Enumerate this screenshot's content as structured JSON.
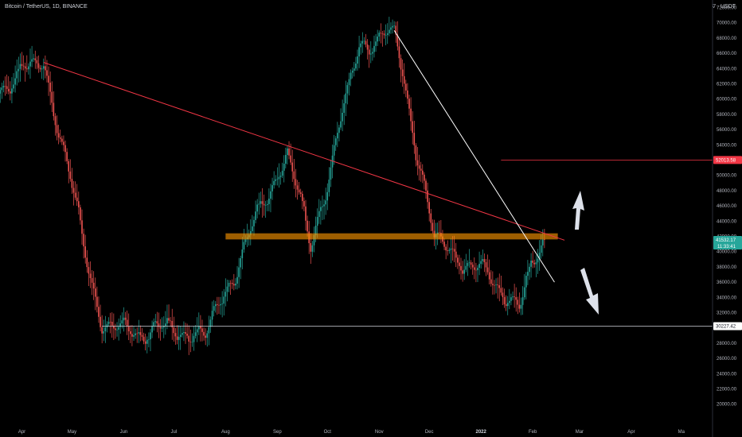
{
  "header": {
    "title": "Bitcoin / TetherUS, 1D, BINANCE",
    "currency": "USDT",
    "currency_caret": "∇"
  },
  "price_axis": {
    "labels": [
      "72000.00",
      "70000.00",
      "68000.00",
      "66000.00",
      "64000.00",
      "62000.00",
      "60000.00",
      "58000.00",
      "56000.00",
      "54000.00",
      "52000.00",
      "50000.00",
      "48000.00",
      "46000.00",
      "44000.00",
      "42000.00",
      "40000.00",
      "38000.00",
      "36000.00",
      "34000.00",
      "32000.00",
      "30000.00",
      "28000.00",
      "26000.00",
      "24000.00",
      "22000.00",
      "20000.00"
    ],
    "values": [
      72000,
      70000,
      68000,
      66000,
      64000,
      62000,
      60000,
      58000,
      56000,
      54000,
      52000,
      50000,
      48000,
      46000,
      44000,
      42000,
      40000,
      38000,
      36000,
      34000,
      32000,
      30000,
      28000,
      26000,
      24000,
      22000,
      20000
    ]
  },
  "time_axis": {
    "labels": [
      "Apr",
      "May",
      "Jun",
      "Jul",
      "Aug",
      "Sep",
      "Oct",
      "Nov",
      "Dec",
      "2022",
      "Feb",
      "Mar",
      "Apr",
      "Ma"
    ],
    "bold": [
      false,
      false,
      false,
      false,
      false,
      false,
      false,
      false,
      false,
      true,
      false,
      false,
      false,
      false
    ]
  },
  "price_tags": {
    "upper_line": {
      "text": "52013.58",
      "value": 52013.58,
      "color": "#f23645"
    },
    "current_price": {
      "text": "41532.17",
      "value": 41532.17,
      "countdown": "11:33:41",
      "color": "#26a69a"
    },
    "lower_line": {
      "text": "30227.42",
      "value": 30227.42,
      "color": "#ffffff"
    }
  },
  "colors": {
    "up": "#26a69a",
    "down": "#ef5350",
    "background": "#000000",
    "trendline_red": "#f23645",
    "trendline_white": "#ffffff",
    "zone": "#ff9800"
  },
  "chart_data": {
    "type": "candlestick",
    "symbol": "Bitcoin / TetherUS",
    "interval": "1D",
    "exchange": "BINANCE",
    "ylim": [
      19500,
      73500
    ],
    "key_points": [
      {
        "date": "2021-03-13",
        "price": 61000
      },
      {
        "date": "2021-04-14",
        "price": 64800
      },
      {
        "date": "2021-05-19",
        "price": 30000
      },
      {
        "date": "2021-07-20",
        "price": 29300
      },
      {
        "date": "2021-09-07",
        "price": 52900
      },
      {
        "date": "2021-09-21",
        "price": 40600
      },
      {
        "date": "2021-10-20",
        "price": 67000
      },
      {
        "date": "2021-11-10",
        "price": 69000
      },
      {
        "date": "2021-12-04",
        "price": 42000
      },
      {
        "date": "2022-01-24",
        "price": 33000
      },
      {
        "date": "2022-02-08",
        "price": 41532
      }
    ],
    "drawings": {
      "red_trendline": {
        "from": {
          "date": "2021-04-14",
          "price": 64800
        },
        "to": {
          "date": "2022-02-20",
          "price": 41500
        }
      },
      "white_trendline": {
        "from": {
          "date": "2021-11-10",
          "price": 69000
        },
        "to": {
          "date": "2022-02-14",
          "price": 36000
        }
      },
      "resistance_line": {
        "price": 52013.58
      },
      "support_line": {
        "price": 30227.42
      },
      "zone": {
        "from_date": "2021-08-01",
        "to_date": "2022-02-16",
        "top": 42400,
        "bottom": 41600
      },
      "arrows": [
        "up",
        "down"
      ]
    }
  }
}
